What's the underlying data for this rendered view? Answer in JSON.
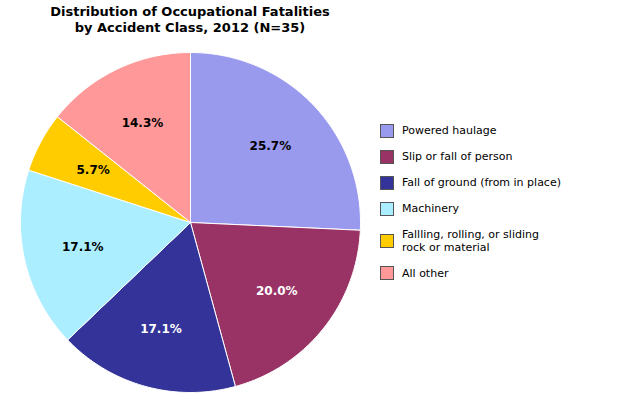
{
  "chart_data": {
    "type": "pie",
    "title": "Distribution of Occupational Fatalities\nby Accident Class, 2012 (N=35)",
    "categories": [
      "Powered haulage",
      "Slip or fall of person",
      "Fall of ground (from in place)",
      "Machinery",
      "Fallling, rolling, or sliding\nrock or material",
      "All other"
    ],
    "values": [
      25.7,
      20.0,
      17.1,
      17.1,
      5.7,
      14.3
    ],
    "value_labels": [
      "25.7%",
      "20.0%",
      "17.1%",
      "17.1%",
      "5.7%",
      "14.3%"
    ],
    "colors": [
      "#9999EE",
      "#993366",
      "#333399",
      "#AAEEFF",
      "#FFCC00",
      "#FF9999"
    ],
    "data_labels": true,
    "legend": "right"
  }
}
